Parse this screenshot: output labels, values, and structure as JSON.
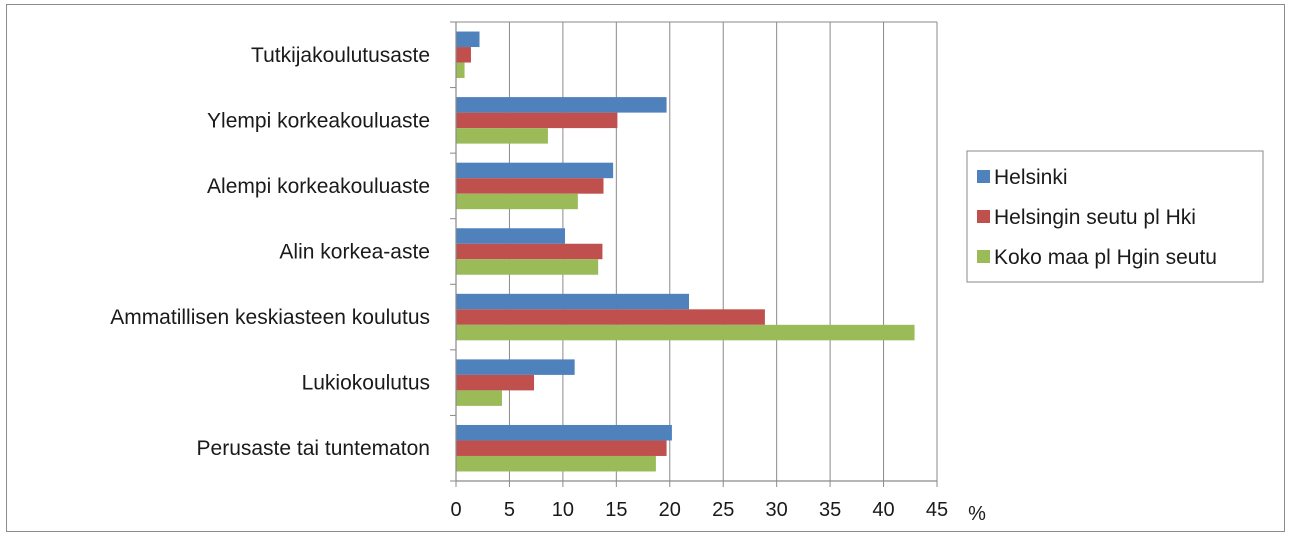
{
  "chart_data": {
    "type": "bar",
    "orientation": "horizontal",
    "categories": [
      "Tutkijakoulutusaste",
      "Ylempi korkeakouluaste",
      "Alempi korkeakouluaste",
      "Alin korkea-aste",
      "Ammatillisen keskiasteen koulutus",
      "Lukiokoulutus",
      "Perusaste tai tuntematon"
    ],
    "series": [
      {
        "name": "Helsinki",
        "color": "#4f81bd",
        "values": [
          2.2,
          19.7,
          14.7,
          10.2,
          21.8,
          11.1,
          20.2
        ]
      },
      {
        "name": "Helsingin seutu pl Hki",
        "color": "#c0504d",
        "values": [
          1.4,
          15.1,
          13.8,
          13.7,
          28.9,
          7.3,
          19.7
        ]
      },
      {
        "name": "Koko maa pl Hgin seutu",
        "color": "#9bbb59",
        "values": [
          0.8,
          8.6,
          11.4,
          13.3,
          42.9,
          4.3,
          18.7
        ]
      }
    ],
    "xticks": [
      "0",
      "5",
      "10",
      "15",
      "20",
      "25",
      "30",
      "35",
      "40",
      "45"
    ],
    "xlim": [
      0,
      45
    ],
    "unit_label": "%",
    "grid": "vertical",
    "legend_position": "right"
  }
}
